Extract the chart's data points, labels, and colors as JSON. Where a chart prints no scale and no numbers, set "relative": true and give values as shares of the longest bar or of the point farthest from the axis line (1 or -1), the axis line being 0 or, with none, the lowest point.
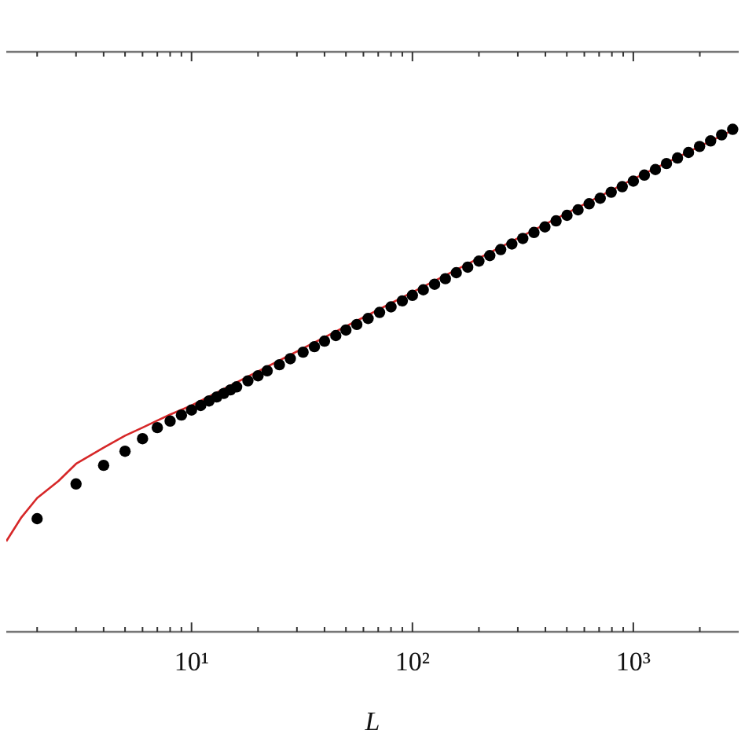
{
  "chart_data": {
    "type": "scatter",
    "xlabel": "L",
    "log": "x",
    "relative": true,
    "xlim": [
      1.45,
      3000
    ],
    "tick_labels": "x",
    "grid": false,
    "legend": false,
    "xticks": [
      {
        "value": 2,
        "label": null
      },
      {
        "value": 3,
        "label": null
      },
      {
        "value": 4,
        "label": null
      },
      {
        "value": 5,
        "label": null
      },
      {
        "value": 6,
        "label": null
      },
      {
        "value": 7,
        "label": null
      },
      {
        "value": 8,
        "label": null
      },
      {
        "value": 9,
        "label": null
      },
      {
        "value": 10,
        "label": "10¹"
      },
      {
        "value": 20,
        "label": null
      },
      {
        "value": 30,
        "label": null
      },
      {
        "value": 40,
        "label": null
      },
      {
        "value": 50,
        "label": null
      },
      {
        "value": 60,
        "label": null
      },
      {
        "value": 70,
        "label": null
      },
      {
        "value": 80,
        "label": null
      },
      {
        "value": 90,
        "label": null
      },
      {
        "value": 100,
        "label": "10²"
      },
      {
        "value": 200,
        "label": null
      },
      {
        "value": 300,
        "label": null
      },
      {
        "value": 400,
        "label": null
      },
      {
        "value": 500,
        "label": null
      },
      {
        "value": 600,
        "label": null
      },
      {
        "value": 700,
        "label": null
      },
      {
        "value": 800,
        "label": null
      },
      {
        "value": 900,
        "label": null
      },
      {
        "value": 1000,
        "label": "10³"
      },
      {
        "value": 2000,
        "label": null
      }
    ],
    "series": [
      {
        "color": "#000000",
        "marker": "circle",
        "x": [
          2,
          3,
          4,
          5,
          6,
          7,
          8,
          9,
          10,
          11,
          12,
          13,
          14,
          15,
          16,
          18,
          20,
          22,
          25,
          28,
          32,
          36,
          40,
          45,
          50,
          56,
          63,
          71,
          80,
          90,
          100,
          112,
          126,
          141,
          158,
          178,
          200,
          224,
          251,
          282,
          316,
          355,
          398,
          447,
          501,
          562,
          631,
          708,
          794,
          891,
          1000,
          1122,
          1259,
          1413,
          1585,
          1778,
          1995,
          2239,
          2512,
          2818
        ],
        "values": [
          0.225,
          0.294,
          0.331,
          0.359,
          0.384,
          0.406,
          0.419,
          0.431,
          0.441,
          0.45,
          0.459,
          0.467,
          0.474,
          0.481,
          0.487,
          0.499,
          0.509,
          0.519,
          0.531,
          0.543,
          0.556,
          0.567,
          0.578,
          0.589,
          0.6,
          0.611,
          0.623,
          0.635,
          0.646,
          0.658,
          0.669,
          0.68,
          0.691,
          0.702,
          0.714,
          0.725,
          0.737,
          0.748,
          0.76,
          0.771,
          0.782,
          0.794,
          0.805,
          0.817,
          0.828,
          0.839,
          0.851,
          0.862,
          0.874,
          0.885,
          0.896,
          0.908,
          0.919,
          0.931,
          0.942,
          0.953,
          0.965,
          0.976,
          0.988,
          0.999
        ]
      },
      {
        "type": "line",
        "color": "#d62728",
        "marker": "none",
        "line_style": "solid",
        "x": [
          1.45,
          1.7,
          2,
          2.5,
          3,
          4,
          5,
          6,
          7,
          8,
          10,
          100,
          1000,
          2900
        ],
        "values": [
          0.18,
          0.228,
          0.266,
          0.3,
          0.334,
          0.366,
          0.39,
          0.406,
          0.42,
          0.432,
          0.45,
          0.675,
          0.9,
          1.0
        ]
      }
    ]
  }
}
